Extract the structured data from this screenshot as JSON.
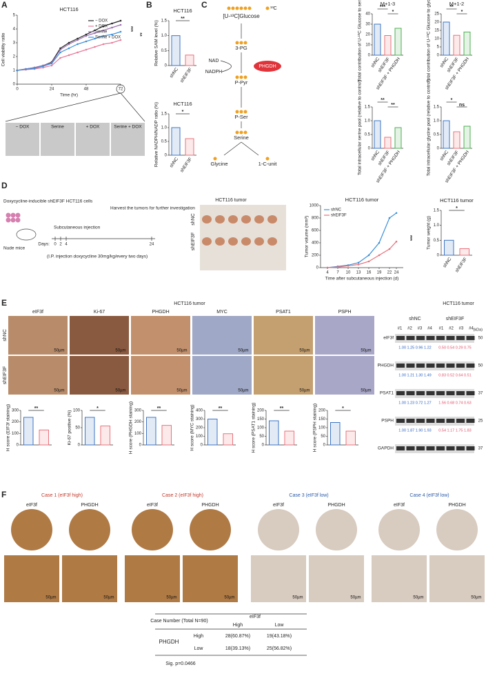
{
  "panels": {
    "A": {
      "label": "A",
      "chart": {
        "type": "line",
        "title": "HCT116",
        "y_label": "Cell viability ratio",
        "x_label": "Time (hr)",
        "x": [
          0,
          6,
          12,
          18,
          24,
          30,
          36,
          42,
          48,
          54,
          60,
          66,
          72
        ],
        "xlim": [
          0,
          72
        ],
        "xticks": [
          0,
          24,
          48,
          72
        ],
        "ylim": [
          0,
          5
        ],
        "yticks": [
          0,
          1,
          2,
          3,
          4,
          5
        ],
        "series": [
          {
            "name": "− DOX",
            "color": "#222222",
            "values": [
              1,
              1.1,
              1.2,
              1.35,
              1.6,
              2.6,
              3.0,
              3.3,
              3.6,
              3.9,
              4.2,
              4.4,
              4.6
            ]
          },
          {
            "name": "+ DOX",
            "color": "#e87a9a",
            "values": [
              1,
              1.05,
              1.1,
              1.2,
              1.35,
              1.9,
              2.1,
              2.3,
              2.5,
              2.7,
              2.9,
              3.0,
              3.2
            ]
          },
          {
            "name": "Serine",
            "color": "#9b6fb0",
            "values": [
              1,
              1.1,
              1.2,
              1.35,
              1.55,
              2.5,
              2.9,
              3.2,
              3.5,
              3.7,
              3.9,
              4.1,
              4.3
            ]
          },
          {
            "name": "Serine + DOX",
            "color": "#3b8fd9",
            "values": [
              1,
              1.08,
              1.15,
              1.3,
              1.5,
              2.3,
              2.6,
              2.9,
              3.1,
              3.3,
              3.5,
              3.6,
              3.8
            ]
          }
        ],
        "sig": [
          "***",
          "**"
        ]
      },
      "images": [
        "− DOX",
        "Serine",
        "+ DOX",
        "Serine + DOX"
      ]
    },
    "B": {
      "label": "B",
      "charts": [
        {
          "type": "bar",
          "title": "HCT116",
          "y_label": "Relative SAM level (%)",
          "categories": [
            "shNC",
            "shEIF3F"
          ],
          "values": [
            1.0,
            0.35
          ],
          "colors": [
            "#3b74c4",
            "#e8707a"
          ],
          "ylim": [
            0,
            1.5
          ],
          "yticks": [
            0,
            {
              "value": 0.5,
              "label": "0.5"
            },
            {
              "value": 1,
              "label": "1.0"
            },
            {
              "value": 1.5,
              "label": "1.5"
            }
          ],
          "sig": [
            "**"
          ]
        },
        {
          "type": "bar",
          "title": "HCT116",
          "y_label": "Relative NADPH/NADP ratio (%)",
          "categories": [
            "shNC",
            "shEIF3F"
          ],
          "values": [
            1.0,
            0.6
          ],
          "colors": [
            "#3b74c4",
            "#e8707a"
          ],
          "ylim": [
            0,
            1.5
          ],
          "yticks": [
            0,
            {
              "value": 0.5,
              "label": "0.5"
            },
            {
              "value": 1,
              "label": "1.0"
            },
            {
              "value": 1.5,
              "label": "1.5"
            }
          ],
          "sig": [
            "*"
          ]
        }
      ]
    },
    "C": {
      "label": "C",
      "pathway": {
        "glucose": "[U-¹³C]Glucose",
        "label13c": "¹³C",
        "nodes": [
          "3-PG",
          "P-Pyr",
          "P-Ser",
          "Serine",
          "Glycine",
          "1-C-unit"
        ],
        "enzyme": "PHGDH",
        "cofactors": [
          "NAD",
          "NADPH"
        ]
      },
      "charts": [
        {
          "type": "bar",
          "title": "M+1-3",
          "y_label": "Total contribution of U-¹³C Glucose to serine(%)",
          "categories": [
            "shNC",
            "shEIF3F",
            "shEIF3F + PHGDH"
          ],
          "values": [
            30,
            19,
            26
          ],
          "colors": [
            "#3b74c4",
            "#e8707a",
            "#4caf50"
          ],
          "ylim": [
            0,
            40
          ],
          "yticks": [
            0,
            10,
            20,
            30,
            40
          ],
          "sig": [
            "***",
            "*"
          ]
        },
        {
          "type": "bar",
          "title": "M+1-2",
          "y_label": "Total contribution of U-¹³C Glucose to glycine(%)",
          "categories": [
            "shNC",
            "shEIF3F",
            "shEIF3F + PHGDH"
          ],
          "values": [
            20,
            12,
            14
          ],
          "colors": [
            "#3b74c4",
            "#e8707a",
            "#4caf50"
          ],
          "ylim": [
            0,
            25
          ],
          "yticks": [
            0,
            5,
            10,
            15,
            20,
            25
          ],
          "sig": [
            "**",
            "*"
          ]
        },
        {
          "type": "bar",
          "y_label": "Total intracellular serine pool (relative to control)",
          "categories": [
            "shNC",
            "shEIF3F",
            "shEIF3F + PHGDH"
          ],
          "values": [
            1.0,
            0.4,
            0.75
          ],
          "colors": [
            "#3b74c4",
            "#e8707a",
            "#4caf50"
          ],
          "ylim": [
            0,
            1.5
          ],
          "yticks": [
            0,
            {
              "value": 0.5,
              "label": "0.5"
            },
            {
              "value": 1,
              "label": "1.0"
            },
            {
              "value": 1.5,
              "label": "1.5"
            }
          ],
          "sig": [
            "**",
            "**"
          ]
        },
        {
          "type": "bar",
          "y_label": "Total intracellular glycine pool (relative to control)",
          "categories": [
            "shNC",
            "shEIF3F",
            "shEIF3F + PHGDH"
          ],
          "values": [
            1.0,
            0.6,
            0.8
          ],
          "colors": [
            "#3b74c4",
            "#e8707a",
            "#4caf50"
          ],
          "ylim": [
            0,
            1.5
          ],
          "yticks": [
            0,
            {
              "value": 0.5,
              "label": "0.5"
            },
            {
              "value": 1,
              "label": "1.0"
            },
            {
              "value": 1.5,
              "label": "1.5"
            }
          ],
          "sig": [
            "*",
            "ns"
          ]
        }
      ]
    },
    "D": {
      "label": "D",
      "schema": {
        "cells": "Doxycycline-inducible shEIF3F HCT116 cells",
        "mice": "Nude mice",
        "injection": "Subcutaneous injection",
        "harvest": "Harvest the tumors for further investigation",
        "days": "Days:",
        "day_ticks": [
          "0",
          "2",
          "4",
          "24"
        ],
        "note": "(I.P. injection doxycycline 30mg/kg/every two days)"
      },
      "photo": {
        "title": "HCT116 tumor",
        "rows": [
          "shNC",
          "shEIF3F"
        ]
      },
      "volume": {
        "type": "line",
        "title": "HCT116 tumor",
        "y_label": "Tumor volume (mm³)",
        "x_label": "Time after subcutaneous injection (d)",
        "x": [
          4,
          7,
          10,
          13,
          16,
          19,
          22,
          24
        ],
        "xlim": [
          2,
          26
        ],
        "xticks": [
          4,
          7,
          10,
          13,
          16,
          19,
          22,
          24
        ],
        "ylim": [
          0,
          1000
        ],
        "yticks": [
          0,
          200,
          400,
          600,
          800,
          1000
        ],
        "series": [
          {
            "name": "shNC",
            "color": "#3b8fd9",
            "values": [
              0,
              20,
              40,
              80,
              200,
              400,
              800,
              880
            ]
          },
          {
            "name": "shEIF3F",
            "color": "#e8707a",
            "values": [
              0,
              10,
              30,
              50,
              100,
              200,
              300,
              420
            ]
          }
        ],
        "sig": [
          "***"
        ]
      },
      "weight": {
        "type": "bar",
        "title": "HCT116 tumor",
        "y_label": "Tumor weight (g)",
        "categories": [
          "shNC",
          "shEIF3F"
        ],
        "values": [
          0.5,
          0.22
        ],
        "colors": [
          "#3b74c4",
          "#e8707a"
        ],
        "ylim": [
          0,
          1.5
        ],
        "yticks": [
          0,
          {
            "value": 0.5,
            "label": "0.5"
          },
          {
            "value": 1,
            "label": "1.0"
          },
          {
            "value": 1.5,
            "label": "1.5"
          }
        ],
        "sig": [
          "*"
        ]
      }
    },
    "E": {
      "label": "E",
      "title": "HCT116 tumor",
      "columns": [
        "eIF3f",
        "Ki-67",
        "PHGDH",
        "MYC",
        "PSAT1",
        "PSPH"
      ],
      "rows": [
        "shNC",
        "shEIF3F"
      ],
      "scale": "50µm",
      "charts": [
        {
          "type": "bar",
          "y_label": "H score (EIF3f staining)",
          "categories": [
            null,
            null
          ],
          "values": [
            240,
            130
          ],
          "colors": [
            "#3b74c4",
            "#e8707a"
          ],
          "ylim": [
            0,
            300
          ],
          "yticks": [
            0,
            100,
            200,
            300
          ],
          "sig": [
            "**"
          ]
        },
        {
          "type": "bar",
          "y_label": "Ki-67 positive (%)",
          "categories": [
            null,
            null
          ],
          "values": [
            80,
            55
          ],
          "colors": [
            "#3b74c4",
            "#e8707a"
          ],
          "ylim": [
            0,
            100
          ],
          "yticks": [
            0,
            50,
            100
          ],
          "sig": [
            "*"
          ]
        },
        {
          "type": "bar",
          "y_label": "H score (PHGDH staining)",
          "categories": [
            null,
            null
          ],
          "values": [
            240,
            170
          ],
          "colors": [
            "#3b74c4",
            "#e8707a"
          ],
          "ylim": [
            0,
            300
          ],
          "yticks": [
            0,
            100,
            200,
            300
          ],
          "sig": [
            "**"
          ]
        },
        {
          "type": "bar",
          "y_label": "H score (MYC staining)",
          "categories": [
            null,
            null
          ],
          "values": [
            300,
            130
          ],
          "colors": [
            "#3b74c4",
            "#e8707a"
          ],
          "ylim": [
            0,
            400
          ],
          "yticks": [
            0,
            100,
            200,
            300,
            400
          ],
          "sig": [
            "**"
          ]
        },
        {
          "type": "bar",
          "y_label": "H score (PSAT1 staining)",
          "categories": [
            null,
            null
          ],
          "values": [
            140,
            80
          ],
          "colors": [
            "#3b74c4",
            "#e8707a"
          ],
          "ylim": [
            0,
            200
          ],
          "yticks": [
            0,
            50,
            100,
            150,
            200
          ],
          "sig": [
            "**"
          ]
        },
        {
          "type": "bar",
          "y_label": "H score (PSPH staining)",
          "categories": [
            null,
            null
          ],
          "values": [
            130,
            80
          ],
          "colors": [
            "#3b74c4",
            "#e8707a"
          ],
          "ylim": [
            0,
            200
          ],
          "yticks": [
            0,
            50,
            100,
            150,
            200
          ],
          "sig": [
            "*"
          ]
        }
      ],
      "western": {
        "title": "HCT116 tumor",
        "groups": [
          "shNC",
          "shEIF3F"
        ],
        "lanes": [
          "#1",
          "#2",
          "#3",
          "#4",
          "#1",
          "#2",
          "#3",
          "#4"
        ],
        "unit": "(kDa)",
        "bands": [
          {
            "name": "eIF3f",
            "kda": "50",
            "nc": "1.00 1.25 0.96 1.22",
            "kd": "0.50 0.54 0.29 0.75"
          },
          {
            "name": "PHGDH",
            "kda": "50",
            "nc": "1.00 1.21 1.30 1.49",
            "kd": "0.83 0.52 0.64 0.51"
          },
          {
            "name": "PSAT1",
            "kda": "37",
            "nc": "1.00 1.23 0.72 1.27",
            "kd": "1.56 0.68 0.74 0.63"
          },
          {
            "name": "PSPH",
            "kda": "25",
            "nc": "1.00 1.87 1.90 1.93",
            "kd": "0.54 1.17 1.75 1.83"
          },
          {
            "name": "GAPDH",
            "kda": "37"
          }
        ]
      }
    },
    "F": {
      "label": "F",
      "cases": [
        "Case 1 (eIF3f high)",
        "Case 2 (eIF3f high)",
        "Case 3 (eIF3f low)",
        "Case 4 (eIF3f low)"
      ],
      "columns": [
        "eIF3f",
        "PHGDH"
      ],
      "scale": "50µm",
      "table": {
        "corner": "Case Number (Total N=90)",
        "col_header": "eIF3f",
        "cols": [
          "High",
          "Low"
        ],
        "row_header": "PHGDH",
        "rows": [
          [
            "High",
            "28(60.87%)",
            "19(43.18%)"
          ],
          [
            "Low",
            "18(39.13%)",
            "25(56.82%)"
          ]
        ],
        "footer": "Sig. p=0.0466"
      }
    }
  }
}
